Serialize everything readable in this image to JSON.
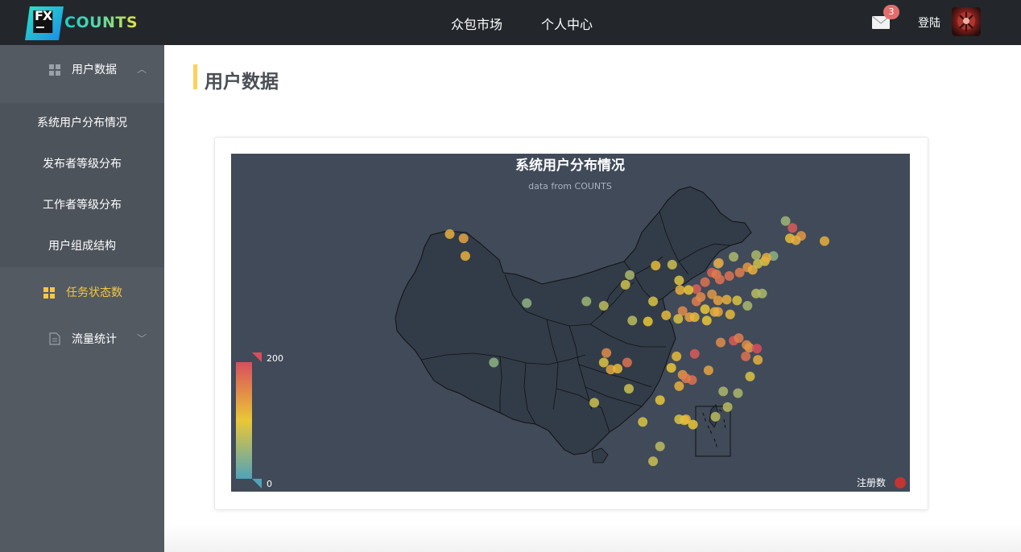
{
  "app": {
    "logo_mark": "FX",
    "logo_text": "COUNTS"
  },
  "nav": {
    "items": [
      {
        "label": "众包市场"
      },
      {
        "label": "个人中心"
      }
    ],
    "mail_badge": "3",
    "login_label": "登陆"
  },
  "sidebar": {
    "group_user_data": "用户数据",
    "sub_items": [
      {
        "label": "系统用户分布情况"
      },
      {
        "label": "发布者等级分布"
      },
      {
        "label": "工作者等级分布"
      },
      {
        "label": "用户组成结构"
      }
    ],
    "task_status": "任务状态数",
    "traffic_stats": "流量统计"
  },
  "page": {
    "title": "用户数据"
  },
  "colors": {
    "accent": "#ffd15c",
    "topbar": "#23272c",
    "sidebar": "#535a62",
    "chart_bg": "#404a59",
    "map_fill": "#323c48",
    "visual_low": "#50a3ba",
    "visual_mid": "#eac736",
    "visual_high": "#d94e5d"
  },
  "chart_data": {
    "type": "scatter",
    "title": "系统用户分布情况",
    "subtitle": "data from COUNTS",
    "legend": [
      {
        "name": "注册数",
        "color": "#c23531"
      }
    ],
    "legend_position": "bottom-right",
    "visual_map": {
      "min": 0,
      "max": 200,
      "min_label": "0",
      "max_label": "200"
    },
    "points": [
      {
        "x": 87.6,
        "y": 43.8,
        "v": 130
      },
      {
        "x": 86.0,
        "y": 44.3,
        "v": 120
      },
      {
        "x": 87.8,
        "y": 41.8,
        "v": 120
      },
      {
        "x": 124.8,
        "y": 45.8,
        "v": 50
      },
      {
        "x": 125.6,
        "y": 45.0,
        "v": 190
      },
      {
        "x": 126.6,
        "y": 44.1,
        "v": 140
      },
      {
        "x": 125.3,
        "y": 43.8,
        "v": 110
      },
      {
        "x": 126.0,
        "y": 43.6,
        "v": 120
      },
      {
        "x": 129.3,
        "y": 43.5,
        "v": 120
      },
      {
        "x": 123.4,
        "y": 41.8,
        "v": 40
      },
      {
        "x": 122.4,
        "y": 41.2,
        "v": 90
      },
      {
        "x": 122.6,
        "y": 41.6,
        "v": 120
      },
      {
        "x": 121.6,
        "y": 40.9,
        "v": 80
      },
      {
        "x": 121.4,
        "y": 41.9,
        "v": 60
      },
      {
        "x": 118.8,
        "y": 41.7,
        "v": 60
      },
      {
        "x": 117.0,
        "y": 40.9,
        "v": 40
      },
      {
        "x": 117.1,
        "y": 41.0,
        "v": 130
      },
      {
        "x": 116.3,
        "y": 39.9,
        "v": 180
      },
      {
        "x": 116.8,
        "y": 39.7,
        "v": 160
      },
      {
        "x": 117.2,
        "y": 39.1,
        "v": 170
      },
      {
        "x": 118.3,
        "y": 39.5,
        "v": 170
      },
      {
        "x": 119.5,
        "y": 39.9,
        "v": 160
      },
      {
        "x": 120.4,
        "y": 40.5,
        "v": 140
      },
      {
        "x": 121.0,
        "y": 40.2,
        "v": 120
      },
      {
        "x": 114.5,
        "y": 38.0,
        "v": 185
      },
      {
        "x": 115.5,
        "y": 38.8,
        "v": 170
      },
      {
        "x": 114.5,
        "y": 36.6,
        "v": 160
      },
      {
        "x": 115.0,
        "y": 37.1,
        "v": 150
      },
      {
        "x": 116.3,
        "y": 37.4,
        "v": 140
      },
      {
        "x": 117.0,
        "y": 36.7,
        "v": 130
      },
      {
        "x": 118.0,
        "y": 36.8,
        "v": 120
      },
      {
        "x": 119.2,
        "y": 36.7,
        "v": 90
      },
      {
        "x": 120.4,
        "y": 36.1,
        "v": 60
      },
      {
        "x": 121.4,
        "y": 37.5,
        "v": 70
      },
      {
        "x": 122.1,
        "y": 37.5,
        "v": 60
      },
      {
        "x": 118.4,
        "y": 35.1,
        "v": 110
      },
      {
        "x": 117.0,
        "y": 35.4,
        "v": 130
      },
      {
        "x": 116.6,
        "y": 35.4,
        "v": 120
      },
      {
        "x": 115.5,
        "y": 35.7,
        "v": 100
      },
      {
        "x": 112.6,
        "y": 37.9,
        "v": 120
      },
      {
        "x": 113.6,
        "y": 37.9,
        "v": 100
      },
      {
        "x": 112.5,
        "y": 39.0,
        "v": 90
      },
      {
        "x": 111.0,
        "y": 35.0,
        "v": 110
      },
      {
        "x": 112.9,
        "y": 35.5,
        "v": 150
      },
      {
        "x": 113.7,
        "y": 34.8,
        "v": 130
      },
      {
        "x": 114.3,
        "y": 34.8,
        "v": 110
      },
      {
        "x": 112.4,
        "y": 34.6,
        "v": 90
      },
      {
        "x": 115.7,
        "y": 34.4,
        "v": 100
      },
      {
        "x": 111.7,
        "y": 40.8,
        "v": 80
      },
      {
        "x": 109.8,
        "y": 40.7,
        "v": 110
      },
      {
        "x": 106.8,
        "y": 39.6,
        "v": 60
      },
      {
        "x": 106.3,
        "y": 38.5,
        "v": 80
      },
      {
        "x": 103.8,
        "y": 36.1,
        "v": 70
      },
      {
        "x": 101.8,
        "y": 36.6,
        "v": 50
      },
      {
        "x": 108.9,
        "y": 34.3,
        "v": 100
      },
      {
        "x": 107.1,
        "y": 34.4,
        "v": 70
      },
      {
        "x": 109.5,
        "y": 36.6,
        "v": 90
      },
      {
        "x": 94.9,
        "y": 36.4,
        "v": 40
      },
      {
        "x": 91.1,
        "y": 29.6,
        "v": 40
      },
      {
        "x": 118.8,
        "y": 32.1,
        "v": 190
      },
      {
        "x": 119.4,
        "y": 32.4,
        "v": 160
      },
      {
        "x": 120.3,
        "y": 31.6,
        "v": 150
      },
      {
        "x": 120.6,
        "y": 31.3,
        "v": 140
      },
      {
        "x": 121.5,
        "y": 31.2,
        "v": 200
      },
      {
        "x": 120.2,
        "y": 30.3,
        "v": 170
      },
      {
        "x": 121.6,
        "y": 29.9,
        "v": 120
      },
      {
        "x": 120.7,
        "y": 28.0,
        "v": 90
      },
      {
        "x": 119.3,
        "y": 26.1,
        "v": 60
      },
      {
        "x": 118.1,
        "y": 24.5,
        "v": 70
      },
      {
        "x": 117.3,
        "y": 31.9,
        "v": 150
      },
      {
        "x": 114.3,
        "y": 30.6,
        "v": 190
      },
      {
        "x": 112.9,
        "y": 28.2,
        "v": 140
      },
      {
        "x": 112.2,
        "y": 30.3,
        "v": 110
      },
      {
        "x": 115.9,
        "y": 28.7,
        "v": 130
      },
      {
        "x": 114.0,
        "y": 27.6,
        "v": 170
      },
      {
        "x": 113.3,
        "y": 27.8,
        "v": 160
      },
      {
        "x": 112.5,
        "y": 26.9,
        "v": 120
      },
      {
        "x": 111.6,
        "y": 29.0,
        "v": 100
      },
      {
        "x": 104.1,
        "y": 30.7,
        "v": 150
      },
      {
        "x": 106.5,
        "y": 29.6,
        "v": 170
      },
      {
        "x": 104.6,
        "y": 28.8,
        "v": 130
      },
      {
        "x": 105.4,
        "y": 28.9,
        "v": 110
      },
      {
        "x": 103.8,
        "y": 29.6,
        "v": 90
      },
      {
        "x": 102.7,
        "y": 25.0,
        "v": 80
      },
      {
        "x": 106.7,
        "y": 26.6,
        "v": 80
      },
      {
        "x": 110.3,
        "y": 25.3,
        "v": 100
      },
      {
        "x": 108.3,
        "y": 22.8,
        "v": 90
      },
      {
        "x": 113.3,
        "y": 23.1,
        "v": 120
      },
      {
        "x": 114.1,
        "y": 22.5,
        "v": 100
      },
      {
        "x": 113.1,
        "y": 23.0,
        "v": 110
      },
      {
        "x": 112.5,
        "y": 23.1,
        "v": 90
      },
      {
        "x": 110.3,
        "y": 20.0,
        "v": 70
      },
      {
        "x": 109.5,
        "y": 18.3,
        "v": 80
      },
      {
        "x": 116.7,
        "y": 23.4,
        "v": 70
      },
      {
        "x": 117.6,
        "y": 26.3,
        "v": 60
      }
    ],
    "map": {
      "region": "China",
      "fill": "#323c48",
      "border": "#111111",
      "note": ""
    }
  }
}
